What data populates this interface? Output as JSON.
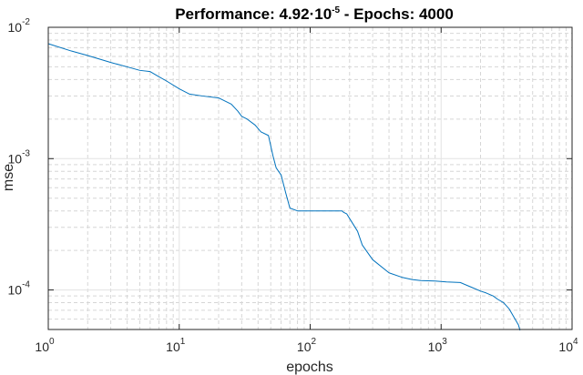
{
  "chart_data": {
    "type": "line",
    "title": {
      "prefix": "Performance: 4.92·10",
      "exponent": "-5",
      "suffix": " - Epochs: 4000"
    },
    "xlabel": "epochs",
    "ylabel": "mse",
    "xscale": "log",
    "yscale": "log",
    "xlim": [
      1,
      10000
    ],
    "ylim": [
      5e-05,
      0.01
    ],
    "grid": true,
    "minor_grid": true,
    "xticks": [
      {
        "value": 1,
        "base": "10",
        "exp": "0"
      },
      {
        "value": 10,
        "base": "10",
        "exp": "1"
      },
      {
        "value": 100,
        "base": "10",
        "exp": "2"
      },
      {
        "value": 1000,
        "base": "10",
        "exp": "3"
      },
      {
        "value": 10000,
        "base": "10",
        "exp": "4"
      }
    ],
    "yticks": [
      {
        "value": 0.0001,
        "base": "10",
        "exp": "-4"
      },
      {
        "value": 0.001,
        "base": "10",
        "exp": "-3"
      },
      {
        "value": 0.01,
        "base": "10",
        "exp": "-2"
      }
    ],
    "series": [
      {
        "color": "#0072BD",
        "x": [
          1,
          1.5,
          2,
          3,
          4,
          5,
          6,
          7,
          8,
          10,
          12,
          15,
          20,
          25,
          28,
          30,
          33,
          38,
          42,
          48,
          52,
          55,
          60,
          65,
          70,
          80,
          90,
          100,
          120,
          150,
          175,
          180,
          190,
          200,
          230,
          250,
          300,
          400,
          500,
          600,
          700,
          900,
          1100,
          1400,
          1700,
          2000,
          2200,
          2500,
          2700,
          3000,
          3300,
          3600,
          3900,
          4000
        ],
        "y": [
          0.0075,
          0.0066,
          0.0061,
          0.0054,
          0.005,
          0.0047,
          0.0046,
          0.0042,
          0.0039,
          0.0034,
          0.0031,
          0.003,
          0.0029,
          0.0026,
          0.0023,
          0.0021,
          0.002,
          0.0018,
          0.0016,
          0.0015,
          0.00105,
          0.00085,
          0.00075,
          0.00055,
          0.00042,
          0.0004,
          0.0004,
          0.0004,
          0.0004,
          0.0004,
          0.0004,
          0.00039,
          0.00038,
          0.00035,
          0.00028,
          0.00022,
          0.00017,
          0.000135,
          0.000125,
          0.00012,
          0.000118,
          0.000117,
          0.000115,
          0.000114,
          0.000105,
          9.8e-05,
          9.5e-05,
          9e-05,
          8.5e-05,
          8e-05,
          7.2e-05,
          6.2e-05,
          5.4e-05,
          4.92e-05
        ]
      }
    ]
  }
}
